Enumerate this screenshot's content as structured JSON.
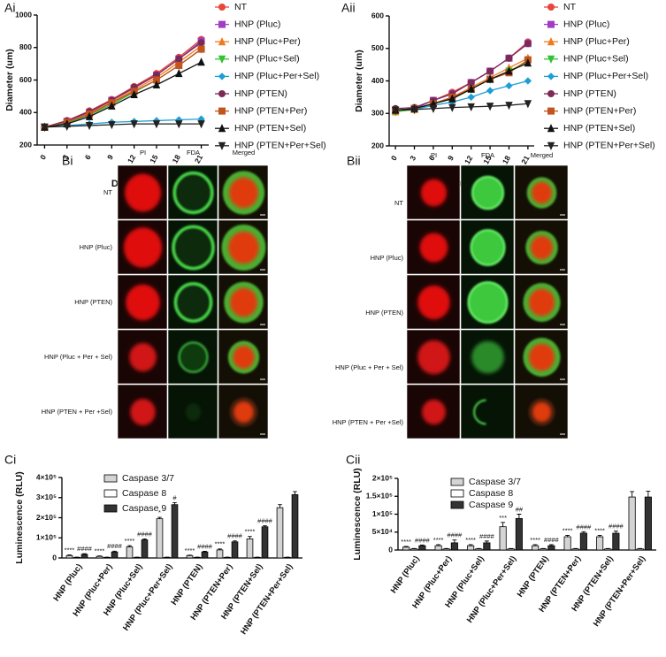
{
  "chart_data": [
    {
      "type": "line",
      "panel": "Ai",
      "xlabel": "Days",
      "ylabel": "Diameter (um)",
      "x": [
        0,
        3,
        6,
        9,
        12,
        15,
        18,
        21
      ],
      "xlim": [
        -1,
        22
      ],
      "xticks": [
        0,
        3,
        6,
        9,
        12,
        15,
        18,
        21
      ],
      "ylim": [
        200,
        1000
      ],
      "yticks": [
        200,
        400,
        600,
        800,
        1000
      ],
      "series": [
        {
          "name": "NT",
          "color": "#e8463c",
          "marker": "circle",
          "values": [
            310,
            350,
            410,
            480,
            560,
            640,
            740,
            850
          ]
        },
        {
          "name": "HNP (Pluc)",
          "color": "#a13cc4",
          "marker": "square",
          "values": [
            310,
            345,
            400,
            475,
            550,
            630,
            730,
            840
          ]
        },
        {
          "name": "HNP (Pluc+Per)",
          "color": "#f07a1e",
          "marker": "triangle",
          "values": [
            310,
            340,
            395,
            465,
            540,
            615,
            710,
            810
          ]
        },
        {
          "name": "HNP (Pluc+Sel)",
          "color": "#33c233",
          "marker": "triangle-down",
          "values": [
            310,
            335,
            385,
            450,
            525,
            600,
            690,
            790
          ]
        },
        {
          "name": "HNP (Pluc+Per+Sel)",
          "color": "#1e9ed4",
          "marker": "diamond",
          "values": [
            310,
            320,
            330,
            340,
            345,
            350,
            355,
            360
          ]
        },
        {
          "name": "HNP (PTEN)",
          "color": "#7a2a55",
          "marker": "circle",
          "values": [
            310,
            350,
            405,
            475,
            555,
            630,
            730,
            830
          ]
        },
        {
          "name": "HNP (PTEN+Per)",
          "color": "#c2541e",
          "marker": "square",
          "values": [
            310,
            340,
            390,
            460,
            530,
            600,
            690,
            790
          ]
        },
        {
          "name": "HNP (PTEN+Sel)",
          "color": "#111111",
          "marker": "triangle",
          "values": [
            310,
            330,
            375,
            440,
            510,
            570,
            640,
            710
          ]
        },
        {
          "name": "HNP (PTEN+Per+Sel)",
          "color": "#222222",
          "marker": "triangle-down",
          "values": [
            310,
            315,
            320,
            325,
            330,
            330,
            330,
            330
          ]
        }
      ]
    },
    {
      "type": "line",
      "panel": "Aii",
      "xlabel": "Days",
      "ylabel": "Diameter (um)",
      "x": [
        0,
        3,
        6,
        9,
        12,
        15,
        18,
        21
      ],
      "xlim": [
        -1,
        22
      ],
      "xticks": [
        0,
        3,
        6,
        9,
        12,
        15,
        18,
        21
      ],
      "ylim": [
        200,
        600
      ],
      "yticks": [
        200,
        300,
        400,
        500,
        600
      ],
      "series": [
        {
          "name": "NT",
          "color": "#e8463c",
          "marker": "circle",
          "values": [
            305,
            315,
            340,
            365,
            395,
            430,
            470,
            520
          ]
        },
        {
          "name": "HNP (Pluc)",
          "color": "#a13cc4",
          "marker": "square",
          "values": [
            310,
            315,
            340,
            360,
            395,
            430,
            470,
            515
          ]
        },
        {
          "name": "HNP (Pluc+Per)",
          "color": "#f07a1e",
          "marker": "triangle",
          "values": [
            305,
            312,
            330,
            350,
            380,
            410,
            440,
            470
          ]
        },
        {
          "name": "HNP (Pluc+Sel)",
          "color": "#33c233",
          "marker": "triangle-down",
          "values": [
            305,
            312,
            330,
            345,
            375,
            405,
            430,
            460
          ]
        },
        {
          "name": "HNP (Pluc+Per+Sel)",
          "color": "#1e9ed4",
          "marker": "diamond",
          "values": [
            310,
            312,
            325,
            335,
            350,
            370,
            385,
            400
          ]
        },
        {
          "name": "HNP (PTEN)",
          "color": "#7a2a55",
          "marker": "circle",
          "values": [
            315,
            318,
            340,
            360,
            395,
            430,
            470,
            515
          ]
        },
        {
          "name": "HNP (PTEN+Per)",
          "color": "#c2541e",
          "marker": "square",
          "values": [
            310,
            315,
            330,
            350,
            375,
            405,
            425,
            465
          ]
        },
        {
          "name": "HNP (PTEN+Sel)",
          "color": "#111111",
          "marker": "triangle",
          "values": [
            310,
            315,
            330,
            345,
            375,
            405,
            430,
            455
          ]
        },
        {
          "name": "HNP (PTEN+Per+Sel)",
          "color": "#222222",
          "marker": "triangle-down",
          "values": [
            310,
            312,
            315,
            318,
            320,
            322,
            325,
            330
          ]
        }
      ]
    },
    {
      "type": "bar",
      "panel": "Ci",
      "ylabel": "Luminescence (RLU)",
      "categories": [
        "HNP (Pluc)",
        "HNP (Pluc+Per)",
        "HNP (Pluc+Sel)",
        "HNP (Pluc+Per+Sel)",
        "HNP (PTEN)",
        "HNP (PTEN+Per)",
        "HNP (PTEN+Sel)",
        "HNP (PTEN+Per+Sel)"
      ],
      "ylim": [
        0,
        400000
      ],
      "yticks": [
        0,
        {
          "value": 100000,
          "label": "1×10⁵"
        },
        {
          "value": 200000,
          "label": "2×10⁵"
        },
        {
          "value": 300000,
          "label": "3×10⁵"
        },
        {
          "value": 400000,
          "label": "4×10⁵"
        }
      ],
      "series": [
        {
          "name": "Caspase 3/7",
          "color": "#d4d4d4",
          "values": [
            12000,
            8000,
            55000,
            195000,
            12000,
            40000,
            95000,
            250000
          ],
          "errors": [
            3000,
            2000,
            6000,
            7000,
            2000,
            5000,
            12000,
            15000
          ],
          "annotations": [
            "****",
            "****",
            "****",
            "*",
            "****",
            "****",
            "****",
            null
          ]
        },
        {
          "name": "Caspase 8",
          "color": "#ffffff",
          "values": [
            3000,
            3000,
            3000,
            3000,
            3000,
            3000,
            3000,
            3000
          ],
          "errors": [
            1000,
            1000,
            1000,
            1000,
            1000,
            1000,
            1000,
            1000
          ],
          "annotations": [
            null,
            null,
            null,
            null,
            null,
            null,
            null,
            null
          ]
        },
        {
          "name": "Caspase 9",
          "color": "#333333",
          "values": [
            18000,
            30000,
            90000,
            265000,
            30000,
            80000,
            155000,
            315000
          ],
          "errors": [
            3000,
            4000,
            5000,
            10000,
            3000,
            5000,
            5000,
            15000
          ],
          "annotations": [
            "####",
            "####",
            "####",
            "#",
            "####",
            "####",
            "####",
            null
          ]
        }
      ]
    },
    {
      "type": "bar",
      "panel": "Cii",
      "ylabel": "Luminescence (RLU)",
      "categories": [
        "HNP (Pluc)",
        "HNP (Pluc+Per)",
        "HNP (Pluc+Sel)",
        "HNP (Pluc+Per+Sel)",
        "HNP (PTEN)",
        "HNP (PTEN+Per)",
        "HNP (PTEN+Sel)",
        "HNP (PTEN+Per+Sel)"
      ],
      "ylim": [
        0,
        200000
      ],
      "yticks": [
        0,
        {
          "value": 50000,
          "label": "5×10⁴"
        },
        {
          "value": 100000,
          "label": "1×10⁵"
        },
        {
          "value": 150000,
          "label": "1.5×10⁵"
        },
        {
          "value": 200000,
          "label": "2×10⁵"
        }
      ],
      "series": [
        {
          "name": "Caspase 3/7",
          "color": "#d4d4d4",
          "values": [
            8000,
            12000,
            12000,
            65000,
            12000,
            37000,
            37000,
            148000
          ],
          "errors": [
            2000,
            3000,
            3000,
            12000,
            3000,
            4000,
            4000,
            15000
          ],
          "annotations": [
            "****",
            "****",
            "****",
            "***",
            "****",
            "****",
            "****",
            null
          ]
        },
        {
          "name": "Caspase 8",
          "color": "#ffffff",
          "values": [
            3000,
            3000,
            3000,
            3000,
            3000,
            3000,
            3000,
            3000
          ],
          "errors": [
            1000,
            1000,
            1000,
            1000,
            1000,
            1000,
            1000,
            1000
          ],
          "annotations": [
            null,
            null,
            null,
            null,
            null,
            null,
            null,
            null
          ]
        },
        {
          "name": "Caspase 9",
          "color": "#333333",
          "values": [
            12000,
            20000,
            20000,
            88000,
            12000,
            47000,
            47000,
            148000
          ],
          "errors": [
            2000,
            8000,
            5000,
            12000,
            3000,
            4000,
            6000,
            16000
          ],
          "annotations": [
            "####",
            "####",
            "####",
            "##",
            "####",
            "####",
            "####",
            null
          ]
        }
      ]
    }
  ],
  "image_panels": [
    {
      "panel": "Bi",
      "columns": [
        "PI",
        "FDA",
        "Merged"
      ],
      "rows": [
        "NT",
        "HNP (Pluc)",
        "HNP (PTEN)",
        "HNP (Pluc + Per + Sel)",
        "HNP (PTEN + Per +Sel)"
      ]
    },
    {
      "panel": "Bii",
      "columns": [
        "PI",
        "FDA",
        "Merged"
      ],
      "rows": [
        "NT",
        "HNP (Pluc)",
        "HNP (PTEN)",
        "HNP (Pluc + Per + Sel)",
        "HNP (PTEN + Per +Sel)"
      ]
    }
  ]
}
